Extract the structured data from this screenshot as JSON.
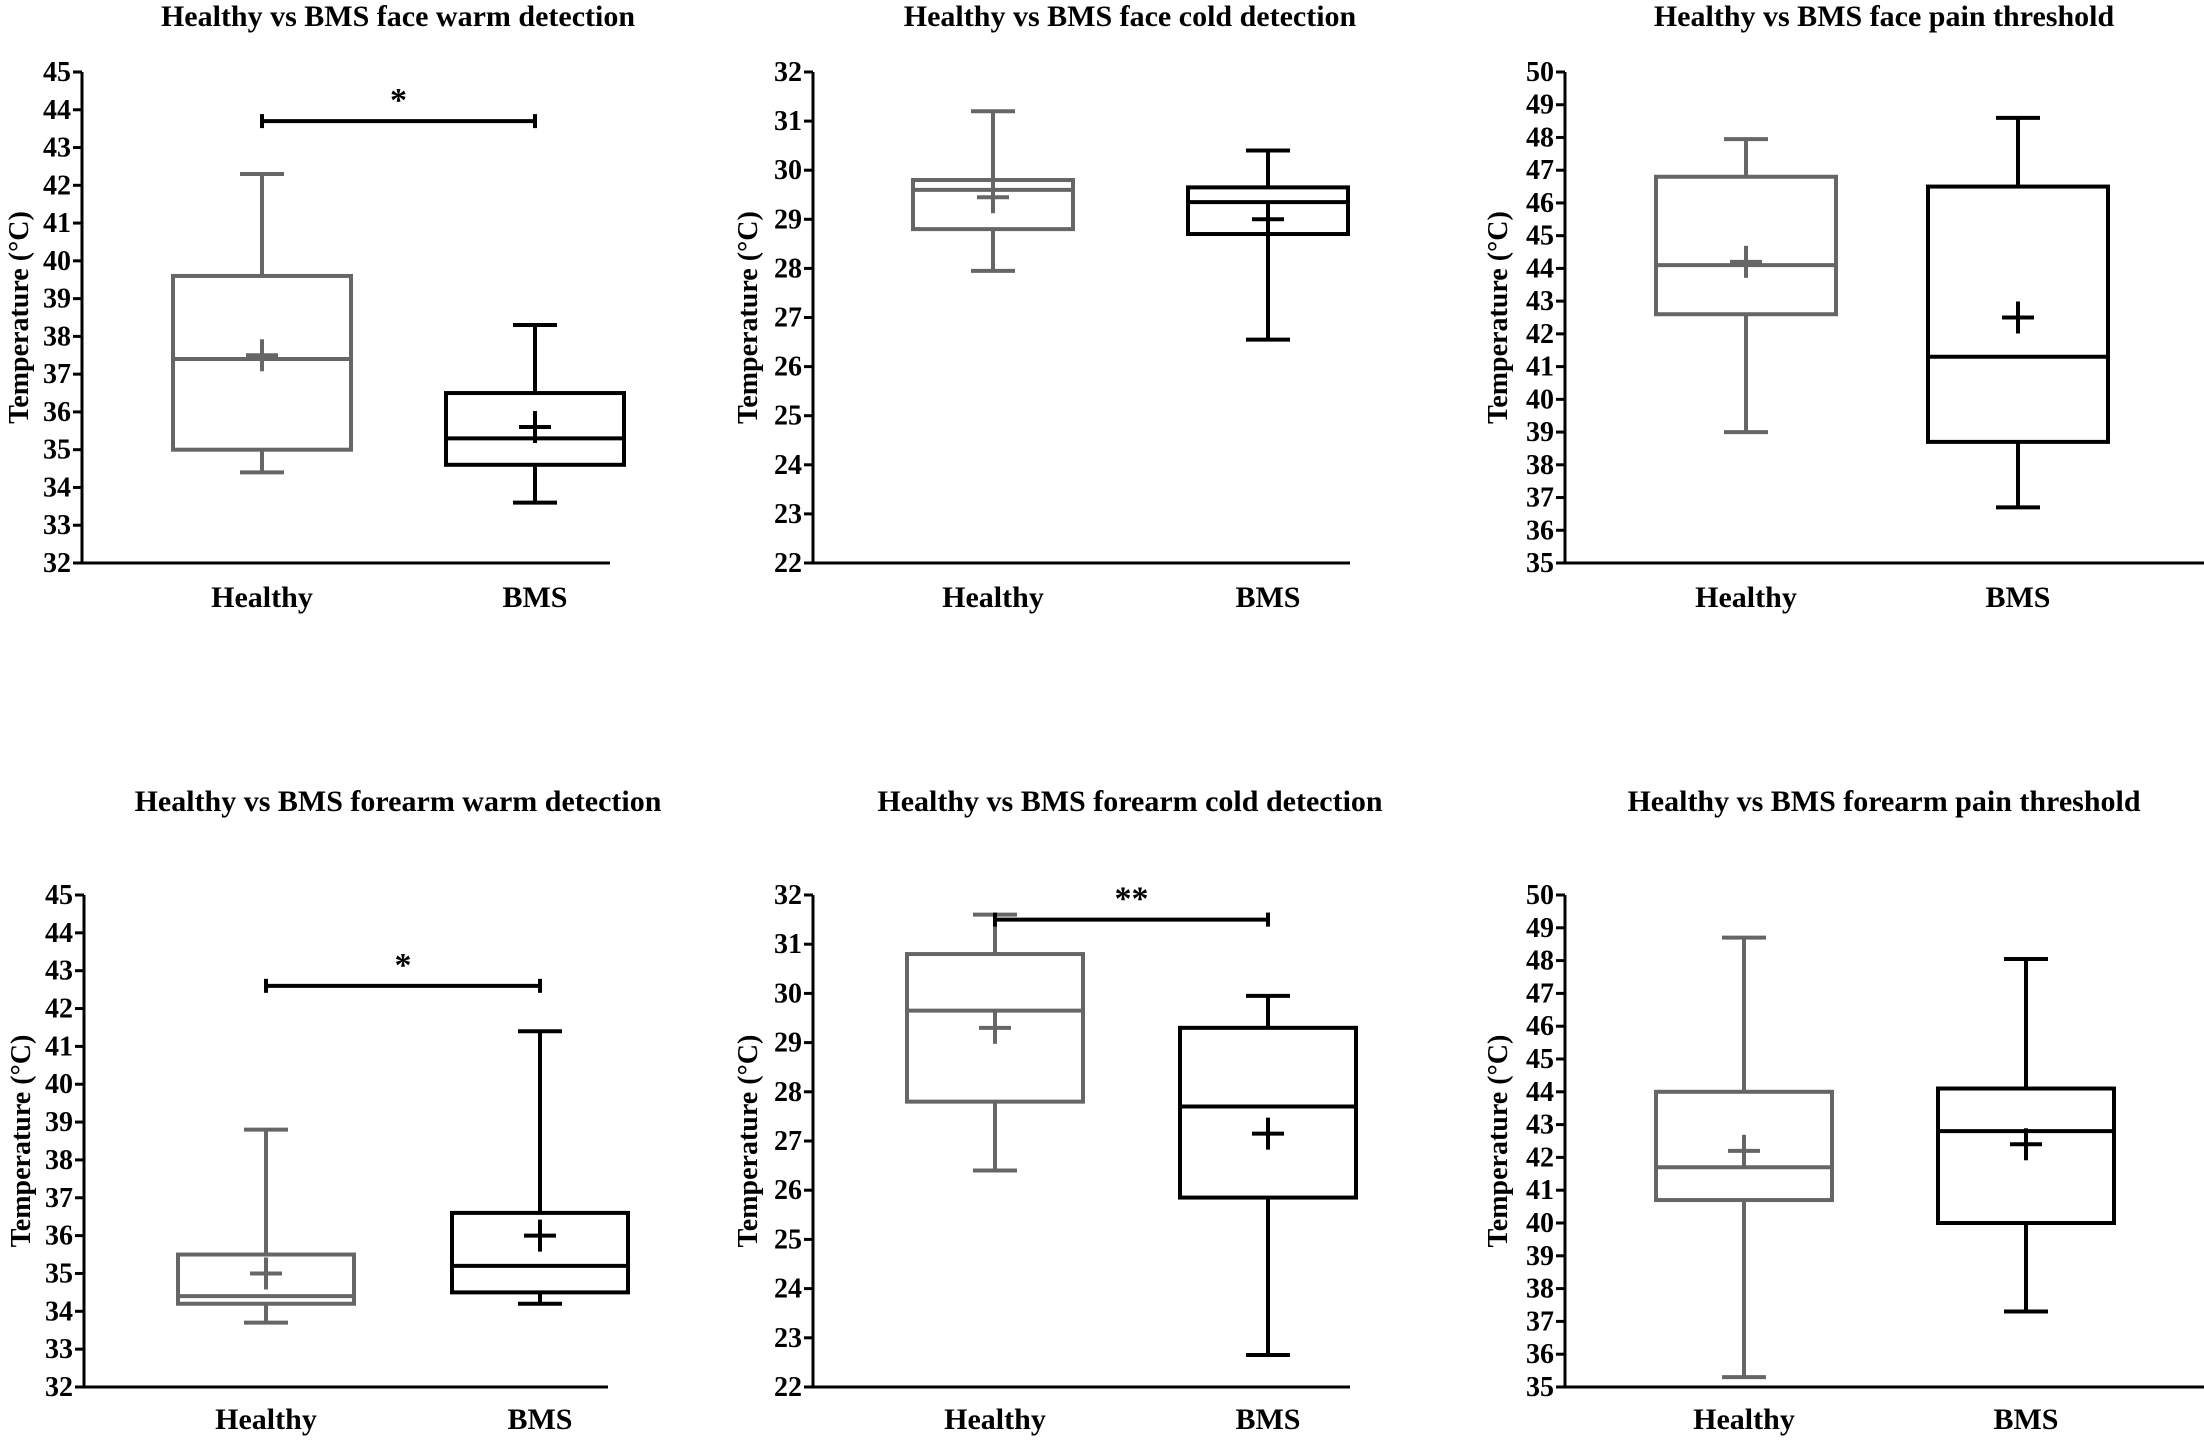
{
  "figure": {
    "background": "#ffffff",
    "healthy_color": "#666666",
    "bms_color": "#000000"
  },
  "chart_data": [
    {
      "type": "box",
      "title": "Healthy vs BMS face warm detection",
      "ylabel": "Temperature  (°C)",
      "ylim": [
        32,
        45
      ],
      "yticks": [
        "32",
        "33",
        "34",
        "35",
        "36",
        "37",
        "38",
        "39",
        "40",
        "41",
        "42",
        "43",
        "44",
        "45"
      ],
      "categories": [
        "Healthy",
        "BMS"
      ],
      "boxes": [
        {
          "name": "Healthy",
          "min": 34.4,
          "q1": 35.0,
          "median": 37.4,
          "q3": 39.6,
          "max": 42.3,
          "mean": 37.5
        },
        {
          "name": "BMS",
          "min": 33.6,
          "q1": 34.6,
          "median": 35.3,
          "q3": 36.5,
          "max": 38.3,
          "mean": 35.6
        }
      ],
      "significance": {
        "label": "*",
        "y": 43.7
      }
    },
    {
      "type": "box",
      "title": "Healthy vs BMS face cold detection",
      "ylabel": "Temperature  (°C)",
      "ylim": [
        22,
        32
      ],
      "yticks": [
        "22",
        "23",
        "24",
        "25",
        "26",
        "27",
        "28",
        "29",
        "30",
        "31",
        "32"
      ],
      "categories": [
        "Healthy",
        "BMS"
      ],
      "boxes": [
        {
          "name": "Healthy",
          "min": 27.95,
          "q1": 28.8,
          "median": 29.6,
          "q3": 29.8,
          "max": 31.2,
          "mean": 29.45
        },
        {
          "name": "BMS",
          "min": 26.55,
          "q1": 28.7,
          "median": 29.35,
          "q3": 29.65,
          "max": 30.4,
          "mean": 29.0
        }
      ],
      "significance": null
    },
    {
      "type": "box",
      "title": "Healthy vs BMS face pain threshold",
      "ylabel": "Temperature  (°C)",
      "ylim": [
        35,
        50
      ],
      "yticks": [
        "35",
        "36",
        "37",
        "38",
        "39",
        "40",
        "41",
        "42",
        "43",
        "44",
        "45",
        "46",
        "47",
        "48",
        "49",
        "50"
      ],
      "categories": [
        "Healthy",
        "BMS"
      ],
      "boxes": [
        {
          "name": "Healthy",
          "min": 39.0,
          "q1": 42.6,
          "median": 44.1,
          "q3": 46.8,
          "max": 47.95,
          "mean": 44.2
        },
        {
          "name": "BMS",
          "min": 36.7,
          "q1": 38.7,
          "median": 41.3,
          "q3": 46.5,
          "max": 48.6,
          "mean": 42.5
        }
      ],
      "significance": null
    },
    {
      "type": "box",
      "title": "Healthy vs BMS forearm warm detection",
      "ylabel": "Temperature  (°C)",
      "ylim": [
        32,
        45
      ],
      "yticks": [
        "32",
        "33",
        "34",
        "35",
        "36",
        "37",
        "38",
        "39",
        "40",
        "41",
        "42",
        "43",
        "44",
        "45"
      ],
      "categories": [
        "Healthy",
        "BMS"
      ],
      "boxes": [
        {
          "name": "Healthy",
          "min": 33.7,
          "q1": 34.2,
          "median": 34.4,
          "q3": 35.5,
          "max": 38.8,
          "mean": 35.0
        },
        {
          "name": "BMS",
          "min": 34.2,
          "q1": 34.5,
          "median": 35.2,
          "q3": 36.6,
          "max": 41.4,
          "mean": 36.0
        }
      ],
      "significance": {
        "label": "*",
        "y": 42.6
      }
    },
    {
      "type": "box",
      "title": "Healthy vs BMS forearm cold detection",
      "ylabel": "Temperature  (°C)",
      "ylim": [
        22,
        32
      ],
      "yticks": [
        "22",
        "23",
        "24",
        "25",
        "26",
        "27",
        "28",
        "29",
        "30",
        "31",
        "32"
      ],
      "categories": [
        "Healthy",
        "BMS"
      ],
      "boxes": [
        {
          "name": "Healthy",
          "min": 26.4,
          "q1": 27.8,
          "median": 29.65,
          "q3": 30.8,
          "max": 31.6,
          "mean": 29.3
        },
        {
          "name": "BMS",
          "min": 22.65,
          "q1": 25.85,
          "median": 27.7,
          "q3": 29.3,
          "max": 29.95,
          "mean": 27.15
        }
      ],
      "significance": {
        "label": "**",
        "y": 31.5
      }
    },
    {
      "type": "box",
      "title": "Healthy vs BMS forearm pain threshold",
      "ylabel": "Temperature  (°C)",
      "ylim": [
        35,
        50
      ],
      "yticks": [
        "35",
        "36",
        "37",
        "38",
        "39",
        "40",
        "41",
        "42",
        "43",
        "44",
        "45",
        "46",
        "47",
        "48",
        "49",
        "50"
      ],
      "categories": [
        "Healthy",
        "BMS"
      ],
      "boxes": [
        {
          "name": "Healthy",
          "min": 35.3,
          "q1": 40.7,
          "median": 41.7,
          "q3": 44.0,
          "max": 48.7,
          "mean": 42.2
        },
        {
          "name": "BMS",
          "min": 37.3,
          "q1": 40.0,
          "median": 42.8,
          "q3": 44.1,
          "max": 48.05,
          "mean": 42.4
        }
      ],
      "significance": null
    }
  ]
}
